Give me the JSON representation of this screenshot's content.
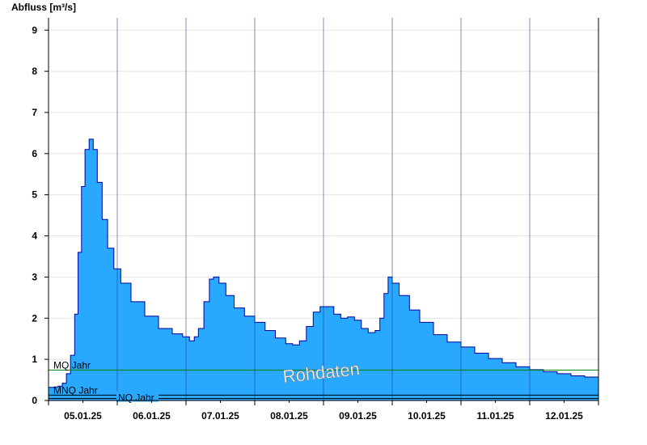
{
  "chart_data": {
    "type": "area",
    "ylabel": "Abfluss [m³/s]",
    "xlabel": "",
    "watermark": "Rohdaten",
    "ylim": [
      0,
      9.3
    ],
    "yticks": [
      0,
      1,
      2,
      3,
      4,
      5,
      6,
      7,
      8,
      9
    ],
    "xlim": [
      0,
      8
    ],
    "grid": true,
    "x_tick_labels": [
      "05.01.25",
      "06.01.25",
      "07.01.25",
      "08.01.25",
      "09.01.25",
      "10.01.25",
      "11.01.25",
      "12.01.25"
    ],
    "day_boundaries": [
      1,
      2,
      3,
      4,
      5,
      6,
      7
    ],
    "series": [
      {
        "values": [
          {
            "x": 0.0,
            "y": 0.32
          },
          {
            "x": 0.08,
            "y": 0.33
          },
          {
            "x": 0.14,
            "y": 0.35
          },
          {
            "x": 0.2,
            "y": 0.42
          },
          {
            "x": 0.26,
            "y": 0.65
          },
          {
            "x": 0.32,
            "y": 1.1
          },
          {
            "x": 0.38,
            "y": 2.1
          },
          {
            "x": 0.43,
            "y": 3.6
          },
          {
            "x": 0.48,
            "y": 5.2
          },
          {
            "x": 0.53,
            "y": 6.1
          },
          {
            "x": 0.59,
            "y": 6.35
          },
          {
            "x": 0.65,
            "y": 6.1
          },
          {
            "x": 0.71,
            "y": 5.3
          },
          {
            "x": 0.78,
            "y": 4.4
          },
          {
            "x": 0.86,
            "y": 3.7
          },
          {
            "x": 0.95,
            "y": 3.2
          },
          {
            "x": 1.05,
            "y": 2.85
          },
          {
            "x": 1.2,
            "y": 2.4
          },
          {
            "x": 1.4,
            "y": 2.05
          },
          {
            "x": 1.6,
            "y": 1.75
          },
          {
            "x": 1.8,
            "y": 1.62
          },
          {
            "x": 1.95,
            "y": 1.55
          },
          {
            "x": 2.0,
            "y": 1.55
          },
          {
            "x": 2.05,
            "y": 1.45
          },
          {
            "x": 2.12,
            "y": 1.55
          },
          {
            "x": 2.18,
            "y": 1.75
          },
          {
            "x": 2.26,
            "y": 2.4
          },
          {
            "x": 2.34,
            "y": 2.95
          },
          {
            "x": 2.4,
            "y": 3.0
          },
          {
            "x": 2.48,
            "y": 2.85
          },
          {
            "x": 2.58,
            "y": 2.55
          },
          {
            "x": 2.7,
            "y": 2.25
          },
          {
            "x": 2.85,
            "y": 2.05
          },
          {
            "x": 3.0,
            "y": 1.9
          },
          {
            "x": 3.15,
            "y": 1.7
          },
          {
            "x": 3.3,
            "y": 1.52
          },
          {
            "x": 3.45,
            "y": 1.38
          },
          {
            "x": 3.55,
            "y": 1.35
          },
          {
            "x": 3.65,
            "y": 1.45
          },
          {
            "x": 3.75,
            "y": 1.8
          },
          {
            "x": 3.85,
            "y": 2.15
          },
          {
            "x": 3.95,
            "y": 2.28
          },
          {
            "x": 4.05,
            "y": 2.28
          },
          {
            "x": 4.15,
            "y": 2.1
          },
          {
            "x": 4.25,
            "y": 2.0
          },
          {
            "x": 4.35,
            "y": 2.03
          },
          {
            "x": 4.45,
            "y": 1.95
          },
          {
            "x": 4.55,
            "y": 1.75
          },
          {
            "x": 4.65,
            "y": 1.65
          },
          {
            "x": 4.75,
            "y": 1.7
          },
          {
            "x": 4.82,
            "y": 2.0
          },
          {
            "x": 4.88,
            "y": 2.6
          },
          {
            "x": 4.94,
            "y": 3.0
          },
          {
            "x": 5.0,
            "y": 2.85
          },
          {
            "x": 5.1,
            "y": 2.55
          },
          {
            "x": 5.25,
            "y": 2.2
          },
          {
            "x": 5.4,
            "y": 1.9
          },
          {
            "x": 5.6,
            "y": 1.6
          },
          {
            "x": 5.8,
            "y": 1.42
          },
          {
            "x": 6.0,
            "y": 1.3
          },
          {
            "x": 6.2,
            "y": 1.15
          },
          {
            "x": 6.4,
            "y": 1.02
          },
          {
            "x": 6.6,
            "y": 0.92
          },
          {
            "x": 6.8,
            "y": 0.82
          },
          {
            "x": 7.0,
            "y": 0.75
          },
          {
            "x": 7.2,
            "y": 0.7
          },
          {
            "x": 7.4,
            "y": 0.65
          },
          {
            "x": 7.6,
            "y": 0.6
          },
          {
            "x": 7.8,
            "y": 0.57
          },
          {
            "x": 8.0,
            "y": 0.55
          }
        ],
        "color": "#29a8ff",
        "edge_color": "#0000a0"
      }
    ],
    "reference_lines": [
      {
        "label": "MQ Jahr",
        "value": 0.74,
        "color": "#008000"
      },
      {
        "label": "MNQ Jahr",
        "value": 0.13,
        "color": "#000000"
      },
      {
        "label": "NQ Jahr",
        "value": 0.05,
        "color": "#000000"
      }
    ]
  }
}
